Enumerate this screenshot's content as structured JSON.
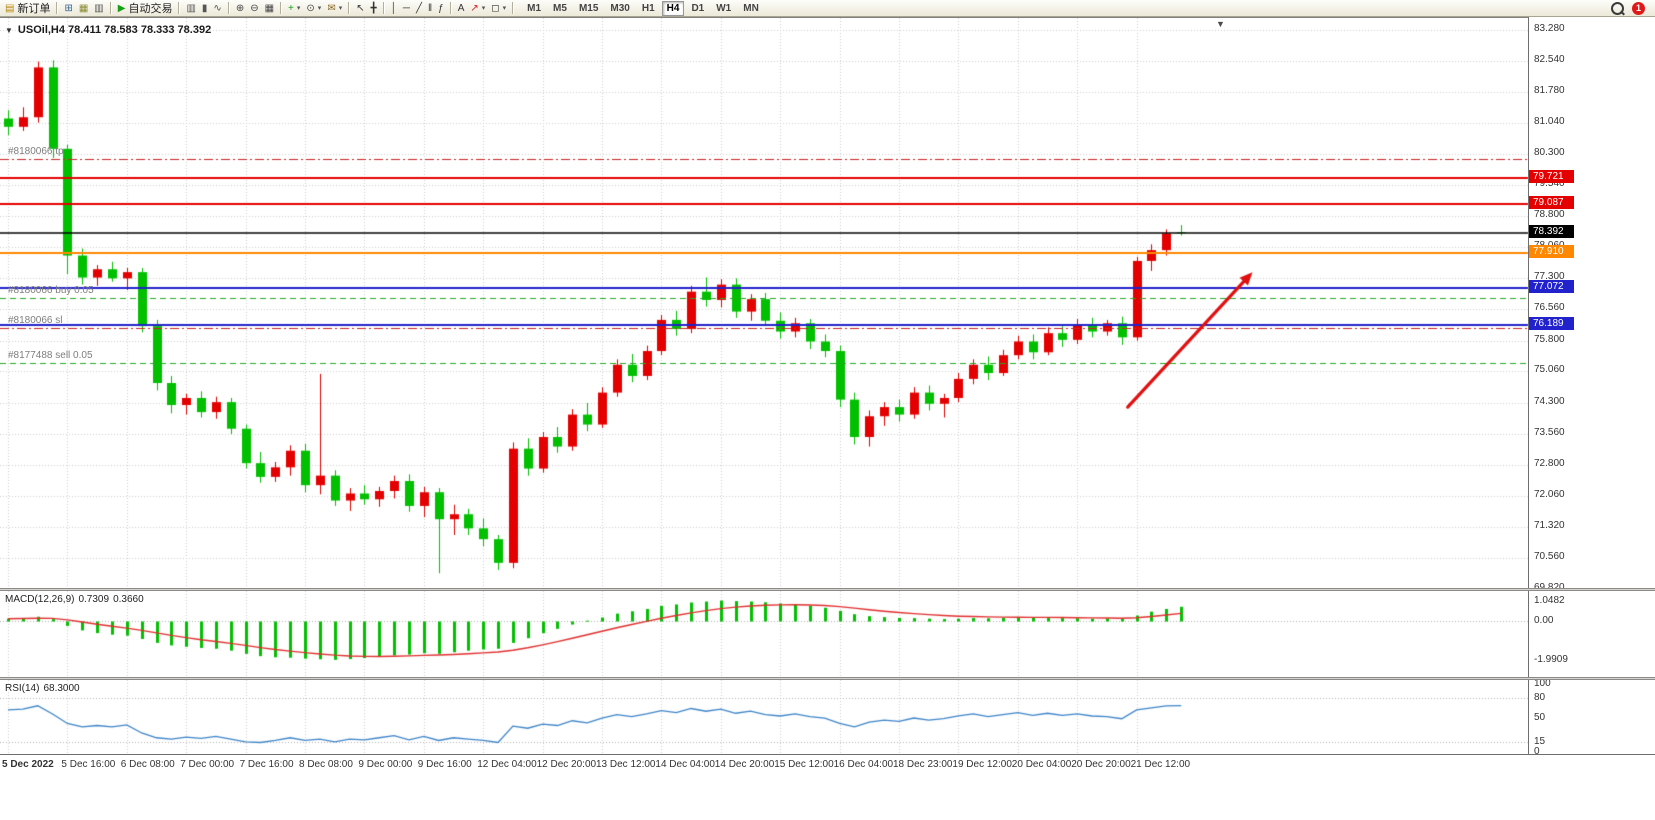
{
  "toolbar": {
    "groups": [
      {
        "items": [
          {
            "name": "new-order",
            "glyph": "▤",
            "glyph_color": "#b8860b",
            "label": "新订单"
          }
        ]
      },
      {
        "items": [
          {
            "name": "chart-window",
            "glyph": "⊞",
            "glyph_color": "#336699"
          },
          {
            "name": "profiles",
            "glyph": "▦",
            "glyph_color": "#8a8a33"
          },
          {
            "name": "market-watch",
            "glyph": "▥",
            "glyph_color": "#555555"
          }
        ]
      },
      {
        "items": [
          {
            "name": "auto-trading",
            "glyph": "▶",
            "glyph_color": "#17a017",
            "label": "自动交易"
          }
        ]
      },
      {
        "items": [
          {
            "name": "bar-chart-type",
            "glyph": "▥",
            "glyph_color": "#555555"
          },
          {
            "name": "candlestick-type",
            "glyph": "▮",
            "glyph_color": "#555555"
          },
          {
            "name": "line-chart-type",
            "glyph": "∿",
            "glyph_color": "#555555"
          }
        ]
      },
      {
        "items": [
          {
            "name": "zoom-in",
            "glyph": "⊕",
            "glyph_color": "#444444"
          },
          {
            "name": "zoom-out",
            "glyph": "⊖",
            "glyph_color": "#444444"
          },
          {
            "name": "tile-windows",
            "glyph": "▦",
            "glyph_color": "#444444"
          }
        ]
      },
      {
        "items": [
          {
            "name": "add-indicator",
            "glyph": "+",
            "glyph_color": "#17a017",
            "caret": true
          },
          {
            "name": "period-selector",
            "glyph": "⊙",
            "glyph_color": "#444444",
            "caret": true
          },
          {
            "name": "template",
            "glyph": "✉",
            "glyph_color": "#8a6622",
            "caret": true
          }
        ]
      },
      {
        "items": [
          {
            "name": "cursor-tool",
            "glyph": "↖",
            "glyph_color": "#333333"
          },
          {
            "name": "crosshair-tool",
            "glyph": "╋",
            "glyph_color": "#333333"
          }
        ]
      },
      {
        "items": [
          {
            "name": "vertical-line-tool",
            "glyph": "│",
            "glyph_color": "#333333"
          },
          {
            "name": "horizontal-line-tool",
            "glyph": "─",
            "glyph_color": "#333333"
          },
          {
            "name": "trendline-tool",
            "glyph": "╱",
            "glyph_color": "#333333"
          },
          {
            "name": "channel-tool",
            "glyph": "‖",
            "glyph_color": "#333333"
          },
          {
            "name": "fibonacci-tool",
            "glyph": "ƒ",
            "glyph_color": "#333333"
          }
        ]
      },
      {
        "items": [
          {
            "name": "text-tool",
            "glyph": "A",
            "glyph_color": "#333333"
          },
          {
            "name": "arrow-tool",
            "glyph": "↗",
            "glyph_color": "#cc2222",
            "caret": true
          },
          {
            "name": "shapes-tool",
            "glyph": "◻",
            "glyph_color": "#333333",
            "caret": true
          }
        ]
      }
    ],
    "timeframes": [
      "M1",
      "M5",
      "M15",
      "M30",
      "H1",
      "H4",
      "D1",
      "W1",
      "MN"
    ],
    "active_timeframe": "H4",
    "notification_count": "1"
  },
  "chart": {
    "title": "USOil,H4 78.411 78.583 78.333 78.392",
    "symbol": "USOil",
    "period": "H4",
    "open": "78.411",
    "high": "78.583",
    "low": "78.333",
    "close": "78.392"
  },
  "chart_data": [
    {
      "type": "candlestick",
      "title": "USOil,H4",
      "x_label_step": 4,
      "x_labels": [
        "5 Dec 2022",
        "5 Dec 16:00",
        "6 Dec 08:00",
        "7 Dec 00:00",
        "7 Dec 16:00",
        "8 Dec 08:00",
        "9 Dec 00:00",
        "9 Dec 16:00",
        "12 Dec 04:00",
        "12 Dec 20:00",
        "13 Dec 12:00",
        "14 Dec 04:00",
        "14 Dec 20:00",
        "15 Dec 12:00",
        "16 Dec 04:00",
        "18 Dec 23:00",
        "19 Dec 12:00",
        "20 Dec 04:00",
        "20 Dec 20:00",
        "21 Dec 12:00"
      ],
      "y_ticks": [
        "83.280",
        "82.540",
        "81.780",
        "81.040",
        "80.300",
        "79.540",
        "78.800",
        "78.060",
        "77.300",
        "76.560",
        "75.800",
        "75.060",
        "74.300",
        "73.560",
        "72.800",
        "72.060",
        "71.320",
        "70.560",
        "69.820"
      ],
      "ylim": [
        69.82,
        83.57
      ],
      "colors": {
        "bull": "#e40000",
        "bear": "#00c000",
        "grid": "#d0d0d0",
        "background": "#ffffff"
      },
      "candles": [
        [
          81.15,
          81.35,
          80.75,
          80.95
        ],
        [
          80.95,
          81.42,
          80.85,
          81.18
        ],
        [
          81.18,
          82.52,
          81.05,
          82.38
        ],
        [
          82.38,
          82.55,
          80.2,
          80.42
        ],
        [
          80.42,
          80.52,
          77.4,
          77.85
        ],
        [
          77.85,
          78.02,
          77.15,
          77.32
        ],
        [
          77.32,
          77.62,
          77.12,
          77.52
        ],
        [
          77.52,
          77.7,
          77.22,
          77.3
        ],
        [
          77.3,
          77.55,
          77.02,
          77.45
        ],
        [
          77.45,
          77.55,
          76.0,
          76.15
        ],
        [
          76.15,
          76.3,
          74.6,
          74.78
        ],
        [
          74.78,
          74.95,
          74.05,
          74.25
        ],
        [
          74.25,
          74.52,
          74.02,
          74.42
        ],
        [
          74.42,
          74.58,
          73.95,
          74.08
        ],
        [
          74.08,
          74.45,
          73.92,
          74.32
        ],
        [
          74.32,
          74.42,
          73.55,
          73.68
        ],
        [
          73.68,
          73.78,
          72.72,
          72.85
        ],
        [
          72.85,
          73.12,
          72.38,
          72.52
        ],
        [
          72.52,
          72.88,
          72.4,
          72.75
        ],
        [
          72.75,
          73.28,
          72.55,
          73.15
        ],
        [
          73.15,
          73.32,
          72.15,
          72.32
        ],
        [
          72.32,
          75.0,
          72.1,
          72.55
        ],
        [
          72.55,
          72.68,
          71.82,
          71.95
        ],
        [
          71.95,
          72.25,
          71.7,
          72.12
        ],
        [
          72.12,
          72.32,
          71.85,
          71.98
        ],
        [
          71.98,
          72.28,
          71.8,
          72.18
        ],
        [
          72.18,
          72.55,
          72.0,
          72.42
        ],
        [
          72.42,
          72.58,
          71.68,
          71.82
        ],
        [
          71.82,
          72.28,
          71.55,
          72.15
        ],
        [
          72.15,
          72.25,
          70.2,
          71.5
        ],
        [
          71.5,
          71.85,
          71.12,
          71.62
        ],
        [
          71.62,
          71.75,
          71.12,
          71.28
        ],
        [
          71.28,
          71.52,
          70.85,
          71.02
        ],
        [
          71.02,
          71.12,
          70.28,
          70.45
        ],
        [
          70.45,
          73.35,
          70.32,
          73.2
        ],
        [
          73.2,
          73.45,
          72.55,
          72.72
        ],
        [
          72.72,
          73.6,
          72.62,
          73.48
        ],
        [
          73.48,
          73.72,
          73.1,
          73.25
        ],
        [
          73.25,
          74.15,
          73.15,
          74.02
        ],
        [
          74.02,
          74.3,
          73.62,
          73.78
        ],
        [
          73.78,
          74.68,
          73.7,
          74.55
        ],
        [
          74.55,
          75.35,
          74.45,
          75.22
        ],
        [
          75.22,
          75.48,
          74.8,
          74.95
        ],
        [
          74.95,
          75.68,
          74.85,
          75.55
        ],
        [
          75.55,
          76.42,
          75.45,
          76.3
        ],
        [
          76.3,
          76.52,
          75.92,
          76.08
        ],
        [
          76.08,
          77.12,
          75.98,
          76.98
        ],
        [
          76.98,
          77.32,
          76.62,
          76.78
        ],
        [
          76.78,
          77.28,
          76.6,
          77.15
        ],
        [
          77.15,
          77.3,
          76.35,
          76.5
        ],
        [
          76.5,
          76.92,
          76.28,
          76.8
        ],
        [
          76.8,
          76.95,
          76.15,
          76.28
        ],
        [
          76.28,
          76.48,
          75.85,
          76.02
        ],
        [
          76.02,
          76.35,
          75.88,
          76.22
        ],
        [
          76.22,
          76.32,
          75.6,
          75.78
        ],
        [
          75.78,
          75.95,
          75.4,
          75.55
        ],
        [
          75.55,
          75.68,
          74.2,
          74.38
        ],
        [
          74.38,
          74.55,
          73.3,
          73.48
        ],
        [
          73.48,
          74.12,
          73.25,
          73.98
        ],
        [
          73.98,
          74.32,
          73.75,
          74.2
        ],
        [
          74.2,
          74.38,
          73.85,
          74.02
        ],
        [
          74.02,
          74.68,
          73.92,
          74.55
        ],
        [
          74.55,
          74.72,
          74.12,
          74.28
        ],
        [
          74.28,
          74.52,
          73.95,
          74.42
        ],
        [
          74.42,
          75.02,
          74.32,
          74.88
        ],
        [
          74.88,
          75.35,
          74.75,
          75.22
        ],
        [
          75.22,
          75.42,
          74.85,
          75.02
        ],
        [
          75.02,
          75.58,
          74.95,
          75.45
        ],
        [
          75.45,
          75.92,
          75.35,
          75.78
        ],
        [
          75.78,
          75.95,
          75.35,
          75.52
        ],
        [
          75.52,
          76.12,
          75.45,
          75.98
        ],
        [
          75.98,
          76.15,
          75.65,
          75.82
        ],
        [
          75.82,
          76.32,
          75.72,
          76.18
        ],
        [
          76.18,
          76.35,
          75.88,
          76.02
        ],
        [
          76.02,
          76.3,
          75.92,
          76.22
        ],
        [
          76.22,
          76.38,
          75.7,
          75.88
        ],
        [
          75.88,
          77.82,
          75.8,
          77.72
        ],
        [
          77.72,
          78.12,
          77.48,
          77.98
        ],
        [
          77.98,
          78.48,
          77.85,
          78.38
        ],
        [
          78.411,
          78.583,
          78.333,
          78.392
        ]
      ],
      "lines": [
        {
          "price": 80.17,
          "color": "#cc2222",
          "style": "dashdot",
          "width": 1,
          "label": "#8180066 tp"
        },
        {
          "price": 79.721,
          "color": "#e40000",
          "style": "solid",
          "width": 2,
          "tag": "79.721",
          "tag_bg": "#e40000"
        },
        {
          "price": 79.087,
          "color": "#e40000",
          "style": "solid",
          "width": 2,
          "tag": "79.087",
          "tag_bg": "#e40000"
        },
        {
          "price": 78.392,
          "color": "#000000",
          "style": "solid",
          "width": 1.5,
          "tag": "78.392",
          "tag_bg": "#000000"
        },
        {
          "price": 77.91,
          "color": "#ff8800",
          "style": "solid",
          "width": 2,
          "tag": "77.910",
          "tag_bg": "#ff8800"
        },
        {
          "price": 77.072,
          "color": "#2222cc",
          "style": "solid",
          "width": 2,
          "tag": "77.072",
          "tag_bg": "#2222cc"
        },
        {
          "price": 76.83,
          "color": "#22aa22",
          "style": "dashed",
          "width": 1,
          "label": "#8180066 buy 0.05"
        },
        {
          "price": 76.189,
          "color": "#2222cc",
          "style": "solid",
          "width": 2,
          "tag": "76.189",
          "tag_bg": "#2222cc"
        },
        {
          "price": 76.1,
          "color": "#cc2222",
          "style": "dashdot",
          "width": 1,
          "label": "#8180066 sl"
        },
        {
          "price": 75.26,
          "color": "#22aa22",
          "style": "dashed",
          "width": 1,
          "label": "#8177488 sell 0.05"
        }
      ],
      "arrow": {
        "color": "#e01010",
        "from": {
          "candle": 75.4,
          "price": 74.2
        },
        "to": {
          "candle": 83.8,
          "price": 77.45
        }
      }
    },
    {
      "type": "bar",
      "name": "MACD(12,26,9)",
      "value_main": "0.7309",
      "value_signal": "0.3660",
      "y_ticks": [
        "1.0482",
        "0.00",
        "-1.9909"
      ],
      "ylim": [
        -2.87,
        1.54
      ],
      "signal_period": 9,
      "colors": {
        "histogram": "#00c000",
        "signal": "#e03030"
      },
      "values": [
        0.12,
        0.15,
        0.22,
        0.1,
        -0.25,
        -0.48,
        -0.62,
        -0.7,
        -0.75,
        -0.92,
        -1.12,
        -1.25,
        -1.32,
        -1.38,
        -1.42,
        -1.52,
        -1.68,
        -1.8,
        -1.86,
        -1.88,
        -1.93,
        -1.96,
        -1.9909,
        -1.95,
        -1.9,
        -1.84,
        -1.76,
        -1.72,
        -1.65,
        -1.68,
        -1.6,
        -1.52,
        -1.46,
        -1.42,
        -1.12,
        -0.88,
        -0.62,
        -0.4,
        -0.18,
        0.02,
        0.18,
        0.38,
        0.5,
        0.62,
        0.78,
        0.85,
        0.95,
        1.0,
        1.0482,
        1.02,
        1.0,
        0.96,
        0.9,
        0.85,
        0.78,
        0.68,
        0.52,
        0.35,
        0.25,
        0.2,
        0.16,
        0.15,
        0.12,
        0.1,
        0.12,
        0.15,
        0.14,
        0.16,
        0.18,
        0.16,
        0.17,
        0.15,
        0.14,
        0.12,
        0.13,
        0.1,
        0.28,
        0.48,
        0.62,
        0.7309
      ]
    },
    {
      "type": "line",
      "name": "RSI(14)",
      "value": "68.3000",
      "y_ticks": [
        "100",
        "80",
        "50",
        "15",
        "0"
      ],
      "levels": [
        80,
        15
      ],
      "ylim": [
        -2.9,
        105.9
      ],
      "color": "#3d85c8",
      "values": [
        62,
        63,
        68,
        56,
        42,
        37,
        39,
        37,
        40,
        28,
        21,
        19,
        22,
        20,
        23,
        19,
        15,
        14,
        17,
        21,
        17,
        19,
        15,
        19,
        18,
        21,
        24,
        18,
        23,
        17,
        21,
        19,
        17,
        14,
        38,
        35,
        41,
        39,
        46,
        43,
        50,
        55,
        52,
        56,
        61,
        58,
        64,
        60,
        63,
        57,
        60,
        55,
        53,
        56,
        52,
        50,
        42,
        37,
        44,
        47,
        45,
        50,
        47,
        49,
        53,
        56,
        52,
        55,
        58,
        54,
        57,
        54,
        56,
        53,
        52,
        49,
        62,
        65,
        68,
        68.3
      ]
    }
  ]
}
